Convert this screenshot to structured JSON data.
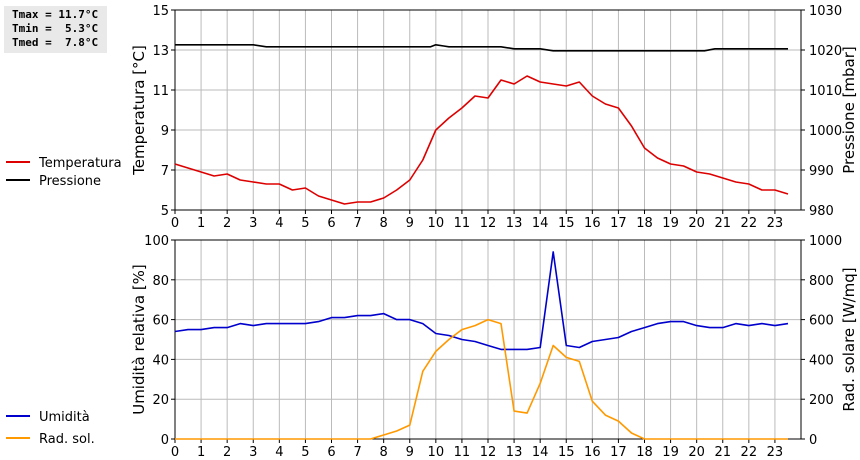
{
  "stats": {
    "tmax": "Tmax = 11.7°C",
    "tmin": "Tmin =  5.3°C",
    "tmed": "Tmed =  7.8°C"
  },
  "colors": {
    "temperatura": "#dd0000",
    "pressione": "#000000",
    "umidita": "#0000cc",
    "rad_sol": "#ff9900",
    "grid": "#bbbbbb"
  },
  "chart_data": [
    {
      "type": "line",
      "ylabel": "Temperatura [°C]",
      "y2label": "Pressione [mbar]",
      "xlim": [
        0,
        24
      ],
      "ylim": [
        5,
        15
      ],
      "y2lim": [
        980,
        1030
      ],
      "xticks": [
        0,
        1,
        2,
        3,
        4,
        5,
        6,
        7,
        8,
        9,
        10,
        11,
        12,
        13,
        14,
        15,
        16,
        17,
        18,
        19,
        20,
        21,
        22,
        23
      ],
      "yticks": [
        5,
        7,
        9,
        11,
        13,
        15
      ],
      "y2ticks": [
        980,
        990,
        1000,
        1010,
        1020,
        1030
      ],
      "grid": true,
      "legend_position": "left",
      "series": [
        {
          "name": "Temperatura",
          "axis": "left",
          "color": "#dd0000",
          "x": [
            0,
            0.5,
            1,
            1.5,
            2,
            2.5,
            3,
            3.5,
            4,
            4.5,
            5,
            5.5,
            6,
            6.5,
            7,
            7.5,
            8,
            8.5,
            9,
            9.5,
            10,
            10.5,
            11,
            11.5,
            12,
            12.5,
            13,
            13.5,
            14,
            14.5,
            15,
            15.5,
            16,
            16.5,
            17,
            17.5,
            18,
            18.5,
            19,
            19.5,
            20,
            20.5,
            21,
            21.5,
            22,
            22.5,
            23,
            23.5
          ],
          "y": [
            7.3,
            7.1,
            6.9,
            6.7,
            6.8,
            6.5,
            6.4,
            6.3,
            6.3,
            6.0,
            6.1,
            5.7,
            5.5,
            5.3,
            5.4,
            5.4,
            5.6,
            6.0,
            6.5,
            7.5,
            9.0,
            9.6,
            10.1,
            10.7,
            10.6,
            11.5,
            11.3,
            11.7,
            11.4,
            11.3,
            11.2,
            11.4,
            10.7,
            10.3,
            10.1,
            9.2,
            8.1,
            7.6,
            7.3,
            7.2,
            6.9,
            6.8,
            6.6,
            6.4,
            6.3,
            6.0,
            6.0,
            5.8
          ]
        },
        {
          "name": "Pressione",
          "axis": "right",
          "color": "#000000",
          "x": [
            0,
            3,
            3.5,
            9.8,
            10,
            10.3,
            10.5,
            12.5,
            13,
            14,
            14.5,
            20.3,
            20.7,
            23.5
          ],
          "y": [
            1021.3,
            1021.3,
            1020.8,
            1020.8,
            1021.3,
            1021.0,
            1020.8,
            1020.8,
            1020.3,
            1020.3,
            1019.8,
            1019.8,
            1020.3,
            1020.3
          ]
        }
      ]
    },
    {
      "type": "line",
      "ylabel": "Umidità relativa [%]",
      "y2label": "Rad. solare [W/mq]",
      "xlim": [
        0,
        24
      ],
      "ylim": [
        0,
        100
      ],
      "y2lim": [
        0,
        1000
      ],
      "xticks": [
        0,
        1,
        2,
        3,
        4,
        5,
        6,
        7,
        8,
        9,
        10,
        11,
        12,
        13,
        14,
        15,
        16,
        17,
        18,
        19,
        20,
        21,
        22,
        23
      ],
      "yticks": [
        0,
        20,
        40,
        60,
        80,
        100
      ],
      "y2ticks": [
        0,
        200,
        400,
        600,
        800,
        1000
      ],
      "grid": true,
      "legend_position": "left",
      "series": [
        {
          "name": "Umidità",
          "axis": "left",
          "color": "#0000cc",
          "x": [
            0,
            0.5,
            1,
            1.5,
            2,
            2.5,
            3,
            3.5,
            4,
            4.5,
            5,
            5.5,
            6,
            6.5,
            7,
            7.5,
            8,
            8.5,
            9,
            9.5,
            10,
            10.5,
            11,
            11.5,
            12,
            12.5,
            13,
            13.5,
            14,
            14.5,
            15,
            15.5,
            16,
            16.5,
            17,
            17.5,
            18,
            18.5,
            19,
            19.5,
            20,
            20.5,
            21,
            21.5,
            22,
            22.5,
            23,
            23.5
          ],
          "y": [
            54,
            55,
            55,
            56,
            56,
            58,
            57,
            58,
            58,
            58,
            58,
            59,
            61,
            61,
            62,
            62,
            63,
            60,
            60,
            58,
            53,
            52,
            50,
            49,
            47,
            45,
            45,
            45,
            46,
            94,
            47,
            46,
            49,
            50,
            51,
            54,
            56,
            58,
            59,
            59,
            57,
            56,
            56,
            58,
            57,
            58,
            57,
            58
          ]
        },
        {
          "name": "Rad. sol.",
          "axis": "right",
          "color": "#ff9900",
          "x": [
            0,
            7.5,
            8,
            8.5,
            9,
            9.5,
            10,
            10.5,
            11,
            11.5,
            12,
            12.5,
            13,
            13.5,
            14,
            14.5,
            15,
            15.5,
            16,
            16.5,
            17,
            17.5,
            18,
            23.5
          ],
          "y": [
            0,
            0,
            20,
            40,
            70,
            340,
            440,
            500,
            550,
            570,
            600,
            580,
            140,
            130,
            280,
            470,
            410,
            390,
            190,
            120,
            90,
            30,
            0,
            0
          ]
        }
      ]
    }
  ]
}
